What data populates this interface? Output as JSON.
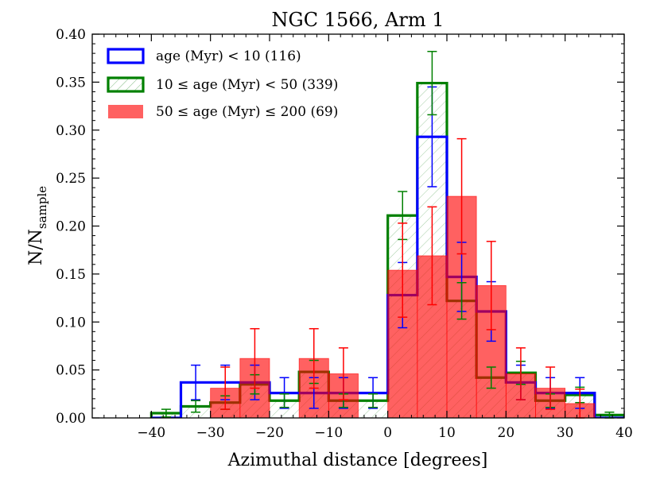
{
  "chart_data": {
    "type": "histogram",
    "title": "NGC 1566, Arm 1",
    "xlabel": "Azimuthal distance [degrees]",
    "ylabel_main": "N/N",
    "ylabel_sub": "sample",
    "xlim": [
      -50,
      40
    ],
    "ylim": [
      0.0,
      0.4
    ],
    "xticks": [
      -40,
      -30,
      -20,
      -10,
      0,
      10,
      20,
      30,
      40
    ],
    "xtick_labels": [
      "−40",
      "−30",
      "−20",
      "−10",
      "0",
      "10",
      "20",
      "30",
      "40"
    ],
    "yticks": [
      0.0,
      0.05,
      0.1,
      0.15,
      0.2,
      0.25,
      0.3,
      0.35,
      0.4
    ],
    "ytick_labels": [
      "0.00",
      "0.05",
      "0.10",
      "0.15",
      "0.20",
      "0.25",
      "0.30",
      "0.35",
      "0.40"
    ],
    "bin_edges": [
      -40,
      -35,
      -30,
      -25,
      -20,
      -15,
      -10,
      -5,
      0,
      5,
      10,
      15,
      20,
      25,
      30,
      35,
      40
    ],
    "legend_position": "top-left",
    "series": [
      {
        "name": "age (Myr) < 10 (116)",
        "style": "step",
        "color": "#0000ff",
        "values": [
          0.0,
          0.037,
          0.037,
          0.037,
          0.026,
          0.026,
          0.026,
          0.026,
          0.128,
          0.293,
          0.147,
          0.111,
          0.037,
          0.026,
          0.026,
          0.0
        ],
        "errors": [
          0.0,
          0.018,
          0.018,
          0.018,
          0.016,
          0.016,
          0.016,
          0.016,
          0.034,
          0.052,
          0.036,
          0.031,
          0.018,
          0.016,
          0.016,
          0.0
        ]
      },
      {
        "name": "10 ≤ age (Myr) < 50 (339)",
        "style": "step-hatched",
        "color": "#008000",
        "values": [
          0.005,
          0.012,
          0.016,
          0.035,
          0.018,
          0.048,
          0.018,
          0.018,
          0.211,
          0.349,
          0.122,
          0.042,
          0.047,
          0.018,
          0.024,
          0.003
        ],
        "errors": [
          0.004,
          0.006,
          0.007,
          0.01,
          0.007,
          0.012,
          0.007,
          0.007,
          0.025,
          0.033,
          0.019,
          0.011,
          0.012,
          0.007,
          0.008,
          0.003
        ]
      },
      {
        "name": "50 ≤ age (Myr) ≤ 200 (69)",
        "style": "filled",
        "color": "#ff0000",
        "values": [
          0.0,
          0.0,
          0.031,
          0.062,
          0.0,
          0.062,
          0.046,
          0.0,
          0.154,
          0.169,
          0.231,
          0.138,
          0.046,
          0.031,
          0.015,
          0.0
        ],
        "errors": [
          0.0,
          0.0,
          0.022,
          0.031,
          0.0,
          0.031,
          0.027,
          0.0,
          0.049,
          0.051,
          0.06,
          0.046,
          0.027,
          0.022,
          0.015,
          0.0
        ]
      }
    ]
  }
}
